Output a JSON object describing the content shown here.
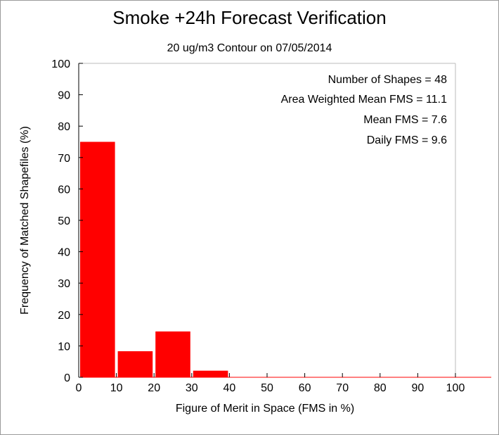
{
  "chart_data": {
    "type": "bar",
    "title": "Smoke +24h Forecast Verification",
    "subtitle": "20 ug/m3 Contour on 07/05/2014",
    "xlabel": "Figure of Merit in Space (FMS in %)",
    "ylabel": "Frequency of Matched Shapefiles (%)",
    "xlim": [
      0,
      100
    ],
    "ylim": [
      0,
      100
    ],
    "xticks": [
      0,
      10,
      20,
      30,
      40,
      50,
      60,
      70,
      80,
      90,
      100
    ],
    "yticks": [
      0,
      10,
      20,
      30,
      40,
      50,
      60,
      70,
      80,
      90,
      100
    ],
    "bins": [
      {
        "start": 0,
        "end": 10,
        "value": 75
      },
      {
        "start": 10,
        "end": 20,
        "value": 8.3
      },
      {
        "start": 20,
        "end": 30,
        "value": 14.6
      },
      {
        "start": 30,
        "end": 40,
        "value": 2.1
      },
      {
        "start": 40,
        "end": 50,
        "value": 0
      },
      {
        "start": 50,
        "end": 60,
        "value": 0
      },
      {
        "start": 60,
        "end": 70,
        "value": 0
      },
      {
        "start": 70,
        "end": 80,
        "value": 0
      },
      {
        "start": 80,
        "end": 90,
        "value": 0
      },
      {
        "start": 90,
        "end": 100,
        "value": 0
      }
    ],
    "bar_color": "#ff0000",
    "grid": false,
    "stats": [
      "Number of Shapes = 48",
      "Area Weighted Mean FMS = 11.1",
      "Mean FMS = 7.6",
      "Daily FMS = 9.6"
    ]
  }
}
